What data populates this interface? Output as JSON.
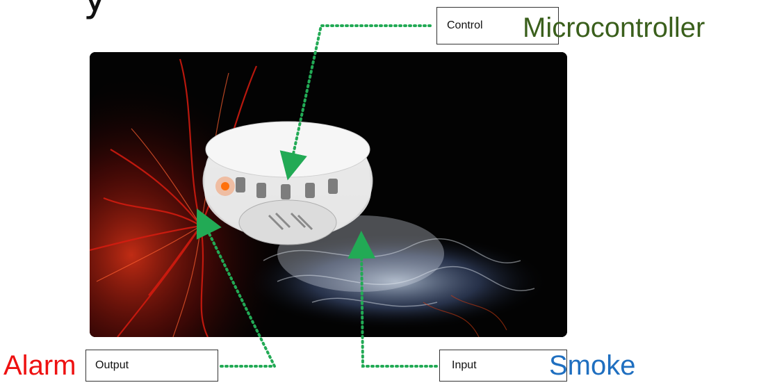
{
  "boxes": {
    "control": "Control",
    "output": "Output",
    "input": "Input"
  },
  "labels": {
    "microcontroller": "Microcontroller",
    "alarm": "Alarm",
    "smoke": "Smoke"
  },
  "colors": {
    "microcontroller": "#3a5f1c",
    "alarm": "#ee1111",
    "smoke": "#1f6fc0",
    "connector": "#22aa55"
  },
  "image": {
    "subject": "smoke-detector-photo"
  }
}
